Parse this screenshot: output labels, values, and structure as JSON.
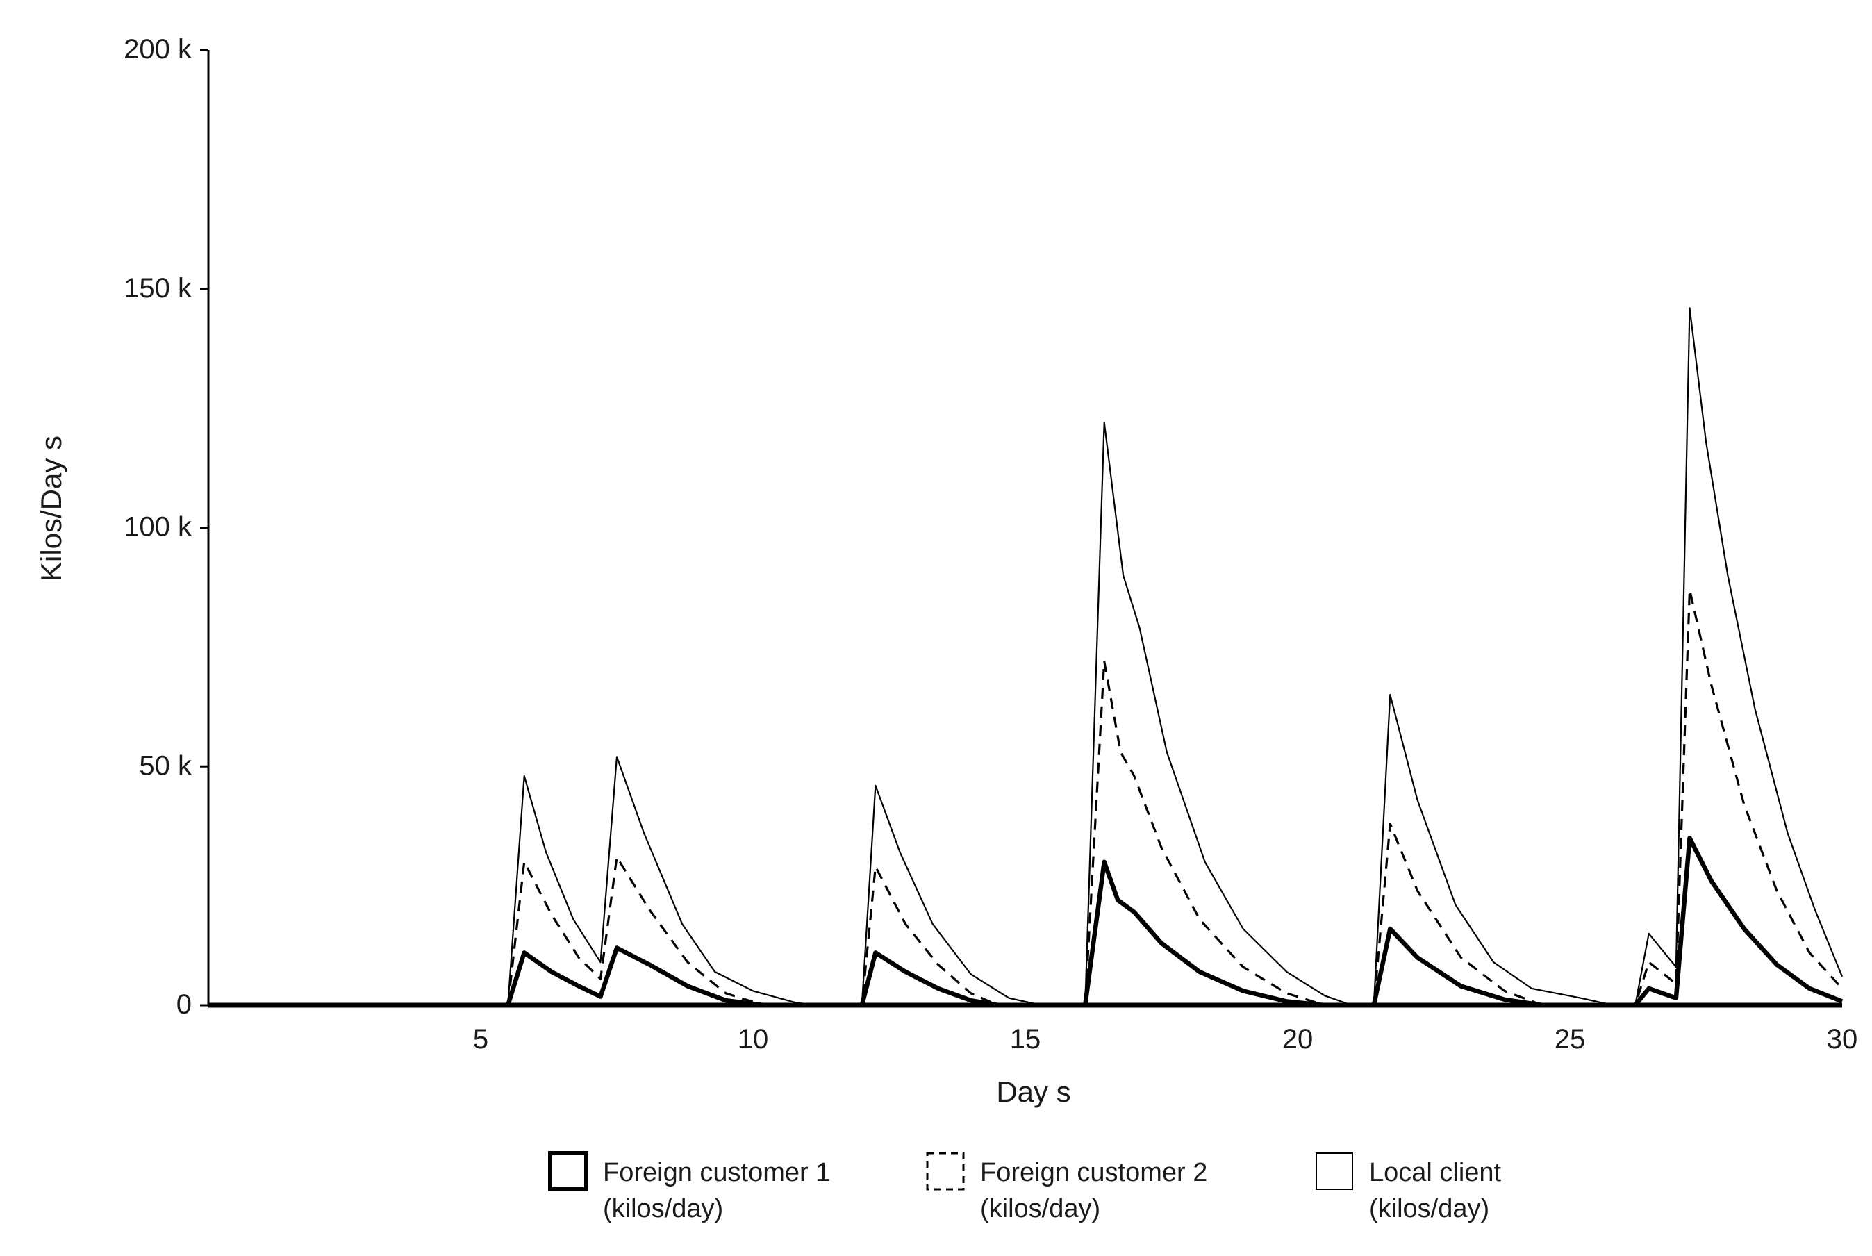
{
  "chart_data": {
    "type": "line",
    "title": "",
    "xlabel": "Day s",
    "ylabel": "Kilos/Day s",
    "xlim": [
      0,
      30
    ],
    "ylim": [
      0,
      200000
    ],
    "x_ticks": [
      5,
      10,
      15,
      20,
      25,
      30
    ],
    "x_tick_labels": [
      "5",
      "10",
      "15",
      "20",
      "25",
      "30"
    ],
    "y_ticks": [
      0,
      50000,
      100000,
      150000,
      200000
    ],
    "y_tick_labels": [
      "0",
      "50 k",
      "100 k",
      "150 k",
      "200 k"
    ],
    "grid": false,
    "legend_position": "bottom",
    "series": [
      {
        "name": "Foreign customer 1\n(kilos/day)",
        "style": "thick-solid",
        "color": "#000000",
        "points": [
          [
            0,
            0
          ],
          [
            5.5,
            0
          ],
          [
            5.8,
            11000
          ],
          [
            6.3,
            7000
          ],
          [
            6.8,
            4000
          ],
          [
            7.2,
            1800
          ],
          [
            7.5,
            12000
          ],
          [
            8.1,
            8500
          ],
          [
            8.8,
            4000
          ],
          [
            9.5,
            1000
          ],
          [
            10.2,
            0
          ],
          [
            12.0,
            0
          ],
          [
            12.25,
            11000
          ],
          [
            12.8,
            7000
          ],
          [
            13.4,
            3500
          ],
          [
            14.0,
            1000
          ],
          [
            14.5,
            0
          ],
          [
            16.1,
            0
          ],
          [
            16.45,
            30000
          ],
          [
            16.7,
            22000
          ],
          [
            17.0,
            19500
          ],
          [
            17.5,
            13000
          ],
          [
            18.2,
            7000
          ],
          [
            19.0,
            3000
          ],
          [
            19.8,
            800
          ],
          [
            20.5,
            0
          ],
          [
            21.4,
            0
          ],
          [
            21.7,
            16000
          ],
          [
            22.2,
            10000
          ],
          [
            23.0,
            4000
          ],
          [
            23.8,
            1200
          ],
          [
            24.5,
            0
          ],
          [
            26.2,
            0
          ],
          [
            26.45,
            3500
          ],
          [
            26.95,
            1500
          ],
          [
            27.2,
            35000
          ],
          [
            27.6,
            26000
          ],
          [
            28.2,
            16000
          ],
          [
            28.8,
            8500
          ],
          [
            29.4,
            3500
          ],
          [
            30.0,
            800
          ]
        ]
      },
      {
        "name": "Foreign customer 2\n(kilos/day)",
        "style": "dashed",
        "color": "#000000",
        "points": [
          [
            0,
            0
          ],
          [
            5.5,
            0
          ],
          [
            5.8,
            30000
          ],
          [
            6.3,
            19000
          ],
          [
            6.8,
            10000
          ],
          [
            7.2,
            5500
          ],
          [
            7.5,
            31000
          ],
          [
            8.1,
            20000
          ],
          [
            8.8,
            9000
          ],
          [
            9.5,
            2500
          ],
          [
            10.2,
            0
          ],
          [
            12.0,
            0
          ],
          [
            12.25,
            29000
          ],
          [
            12.8,
            17000
          ],
          [
            13.4,
            8500
          ],
          [
            14.0,
            2500
          ],
          [
            14.5,
            0
          ],
          [
            16.1,
            0
          ],
          [
            16.45,
            72000
          ],
          [
            16.75,
            53000
          ],
          [
            17.0,
            48000
          ],
          [
            17.5,
            33000
          ],
          [
            18.2,
            18000
          ],
          [
            19.0,
            8000
          ],
          [
            19.8,
            2500
          ],
          [
            20.5,
            0
          ],
          [
            21.4,
            0
          ],
          [
            21.7,
            38000
          ],
          [
            22.2,
            24000
          ],
          [
            23.0,
            10000
          ],
          [
            23.8,
            3000
          ],
          [
            24.5,
            0
          ],
          [
            26.2,
            0
          ],
          [
            26.45,
            9000
          ],
          [
            26.95,
            4500
          ],
          [
            27.2,
            87000
          ],
          [
            27.6,
            67000
          ],
          [
            28.2,
            42000
          ],
          [
            28.8,
            24000
          ],
          [
            29.4,
            11000
          ],
          [
            30.0,
            3500
          ]
        ]
      },
      {
        "name": "Local client\n(kilos/day)",
        "style": "thin-solid",
        "color": "#000000",
        "points": [
          [
            0,
            0
          ],
          [
            5.5,
            0
          ],
          [
            5.8,
            48000
          ],
          [
            6.2,
            32000
          ],
          [
            6.7,
            18000
          ],
          [
            7.2,
            9000
          ],
          [
            7.5,
            52000
          ],
          [
            8.0,
            36000
          ],
          [
            8.7,
            17000
          ],
          [
            9.3,
            7000
          ],
          [
            10.0,
            3000
          ],
          [
            10.8,
            500
          ],
          [
            11.2,
            0
          ],
          [
            12.0,
            0
          ],
          [
            12.25,
            46000
          ],
          [
            12.7,
            32000
          ],
          [
            13.3,
            17000
          ],
          [
            14.0,
            6500
          ],
          [
            14.7,
            1500
          ],
          [
            15.3,
            0
          ],
          [
            16.1,
            0
          ],
          [
            16.45,
            122000
          ],
          [
            16.8,
            90000
          ],
          [
            17.1,
            79000
          ],
          [
            17.6,
            53000
          ],
          [
            18.3,
            30000
          ],
          [
            19.0,
            16000
          ],
          [
            19.8,
            7000
          ],
          [
            20.5,
            2000
          ],
          [
            21.0,
            0
          ],
          [
            21.4,
            0
          ],
          [
            21.7,
            65000
          ],
          [
            22.2,
            43000
          ],
          [
            22.9,
            21000
          ],
          [
            23.6,
            9000
          ],
          [
            24.3,
            3500
          ],
          [
            25.2,
            1500
          ],
          [
            25.8,
            0
          ],
          [
            26.2,
            0
          ],
          [
            26.45,
            15000
          ],
          [
            26.95,
            8000
          ],
          [
            27.2,
            146000
          ],
          [
            27.5,
            118000
          ],
          [
            27.9,
            90000
          ],
          [
            28.4,
            62000
          ],
          [
            29.0,
            36000
          ],
          [
            29.5,
            20000
          ],
          [
            30.0,
            6000
          ]
        ]
      }
    ]
  }
}
